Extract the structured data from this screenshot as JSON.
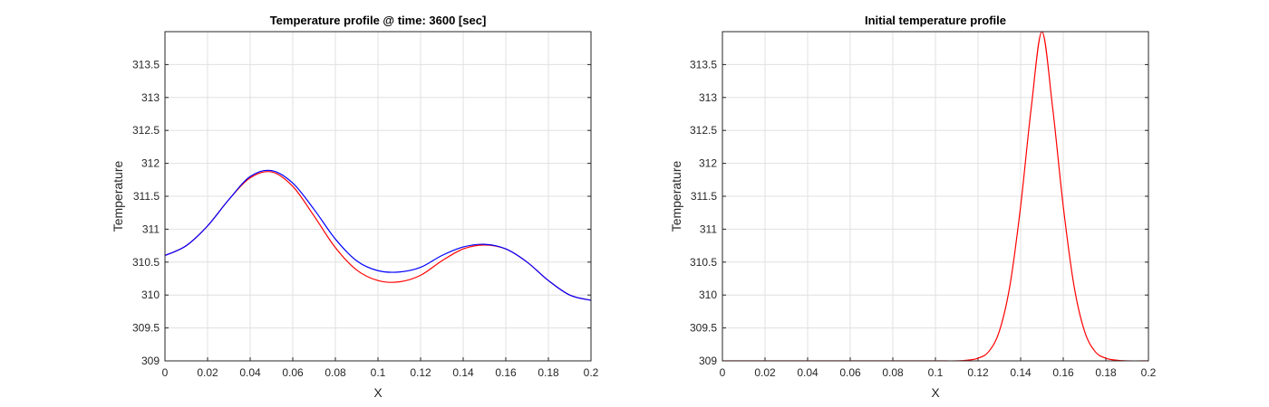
{
  "chart_data": [
    {
      "type": "line",
      "title": "Temperature profile @ time: 3600 [sec]",
      "xlabel": "X",
      "ylabel": "Temperature",
      "xlim": [
        0,
        0.2
      ],
      "ylim": [
        309,
        314
      ],
      "xticks": [
        "0",
        "0.02",
        "0.04",
        "0.06",
        "0.08",
        "0.1",
        "0.12",
        "0.14",
        "0.16",
        "0.18",
        "0.2"
      ],
      "yticks": [
        "309",
        "309.5",
        "310",
        "310.5",
        "311",
        "311.5",
        "312",
        "312.5",
        "313",
        "313.5"
      ],
      "grid": true,
      "series": [
        {
          "color": "#ff0000",
          "x": [
            0,
            0.01,
            0.02,
            0.03,
            0.04,
            0.05,
            0.06,
            0.07,
            0.08,
            0.09,
            0.1,
            0.11,
            0.12,
            0.13,
            0.14,
            0.15,
            0.16,
            0.17,
            0.18,
            0.19,
            0.2
          ],
          "y": [
            310.6,
            310.75,
            311.05,
            311.45,
            311.78,
            311.87,
            311.65,
            311.2,
            310.72,
            310.38,
            310.22,
            310.2,
            310.3,
            310.52,
            310.7,
            310.76,
            310.7,
            310.5,
            310.22,
            310.0,
            309.92
          ]
        },
        {
          "color": "#0000ff",
          "x": [
            0,
            0.01,
            0.02,
            0.03,
            0.04,
            0.05,
            0.06,
            0.07,
            0.08,
            0.09,
            0.1,
            0.11,
            0.12,
            0.13,
            0.14,
            0.15,
            0.16,
            0.17,
            0.18,
            0.19,
            0.2
          ],
          "y": [
            310.6,
            310.75,
            311.05,
            311.45,
            311.8,
            311.89,
            311.7,
            311.3,
            310.85,
            310.52,
            310.37,
            310.35,
            310.42,
            310.6,
            310.73,
            310.77,
            310.7,
            310.5,
            310.22,
            310.0,
            309.92
          ]
        }
      ]
    },
    {
      "type": "line",
      "title": "Initial temperature profile",
      "xlabel": "X",
      "ylabel": "Temperature",
      "xlim": [
        0,
        0.2
      ],
      "ylim": [
        309,
        314
      ],
      "xticks": [
        "0",
        "0.02",
        "0.04",
        "0.06",
        "0.08",
        "0.1",
        "0.12",
        "0.14",
        "0.16",
        "0.18",
        "0.2"
      ],
      "yticks": [
        "309",
        "309.5",
        "310",
        "310.5",
        "311",
        "311.5",
        "312",
        "312.5",
        "313",
        "313.5"
      ],
      "grid": true,
      "series": [
        {
          "color": "#ff0000",
          "x": [
            0,
            0.02,
            0.04,
            0.06,
            0.08,
            0.1,
            0.11,
            0.115,
            0.12,
            0.125,
            0.13,
            0.135,
            0.14,
            0.145,
            0.15,
            0.155,
            0.16,
            0.165,
            0.17,
            0.175,
            0.18,
            0.185,
            0.19,
            0.2
          ],
          "y": [
            309.0,
            309.0,
            309.0,
            309.0,
            309.0,
            309.0,
            309.0,
            309.01,
            309.04,
            309.14,
            309.45,
            310.15,
            311.35,
            312.85,
            314.0,
            312.85,
            311.35,
            310.15,
            309.45,
            309.14,
            309.04,
            309.01,
            309.0,
            309.0
          ]
        }
      ]
    }
  ]
}
